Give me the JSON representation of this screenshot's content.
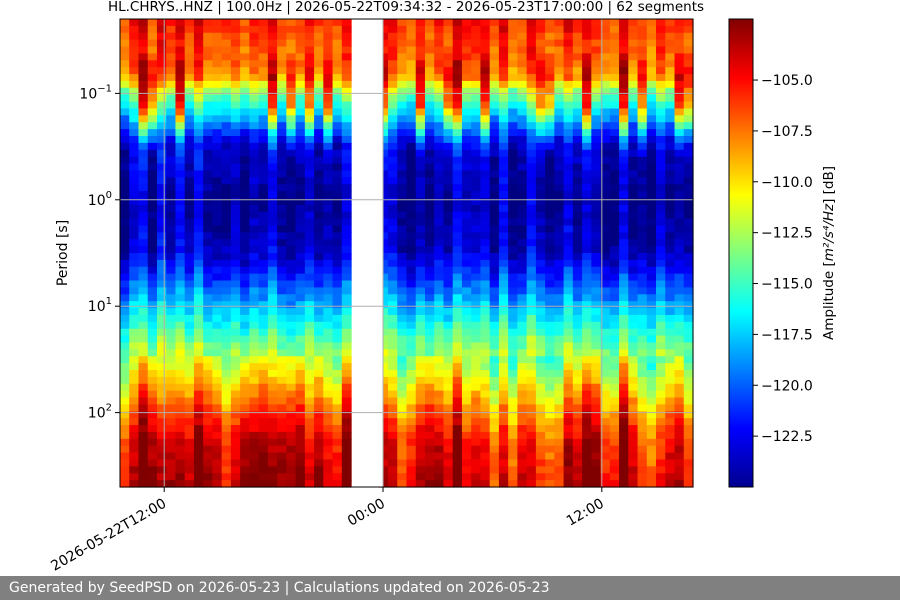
{
  "chart_data": {
    "type": "heatmap",
    "title": "HL.CHRYS..HNZ | 100.0Hz | 2026-05-22T09:34:32 - 2026-05-23T17:00:00 | 62 segments",
    "xlabel": "",
    "ylabel": "Period [s]",
    "y_scale": "log",
    "y_inverted": true,
    "ylim": [
      0.02,
      500
    ],
    "y_ticks": [
      {
        "value": 0.1,
        "base": "10",
        "exp": "−1"
      },
      {
        "value": 1,
        "base": "10",
        "exp": "0"
      },
      {
        "value": 10,
        "base": "10",
        "exp": "1"
      },
      {
        "value": 100,
        "base": "10",
        "exp": "2"
      }
    ],
    "x_ticks": [
      {
        "value": "2026-05-22T12:00",
        "label": "2026-05-22T12:00"
      },
      {
        "value": "2026-05-23T00:00",
        "label": "00:00"
      },
      {
        "value": "2026-05-23T12:00",
        "label": "12:00"
      }
    ],
    "x_range": [
      "2026-05-22T09:34:32",
      "2026-05-23T17:00:00"
    ],
    "data_gap": [
      "2026-05-22T22:30",
      "2026-05-23T00:00"
    ],
    "segments": 62,
    "grid": true,
    "colorbar": {
      "label_prefix": "Amplitude [",
      "label_unit": "m²/s⁴/Hz",
      "label_suffix": "] [dB]",
      "range": [
        -125,
        -102
      ],
      "ticks": [
        -105.0,
        -107.5,
        -110.0,
        -112.5,
        -115.0,
        -117.5,
        -120.0,
        -122.5
      ],
      "colormap": "jet",
      "placement": "right"
    },
    "period_profile": [
      {
        "period": 0.02,
        "db": -105
      },
      {
        "period": 0.03,
        "db": -106
      },
      {
        "period": 0.05,
        "db": -106.5
      },
      {
        "period": 0.07,
        "db": -108
      },
      {
        "period": 0.1,
        "db": -113
      },
      {
        "period": 0.2,
        "db": -119
      },
      {
        "period": 0.3,
        "db": -122.5
      },
      {
        "period": 1,
        "db": -124
      },
      {
        "period": 3,
        "db": -123
      },
      {
        "period": 5,
        "db": -121
      },
      {
        "period": 10,
        "db": -117.5
      },
      {
        "period": 20,
        "db": -114
      },
      {
        "period": 50,
        "db": -110
      },
      {
        "period": 100,
        "db": -106.5
      },
      {
        "period": 200,
        "db": -104
      },
      {
        "period": 500,
        "db": -103
      }
    ]
  },
  "footer": {
    "text": "Generated by SeedPSD on 2026-05-23 | Calculations updated on 2026-05-23"
  },
  "colors": {
    "background": "#ffffff",
    "footer_bg": "#808080",
    "footer_text": "#ffffff",
    "grid": "#b0b0b0"
  }
}
